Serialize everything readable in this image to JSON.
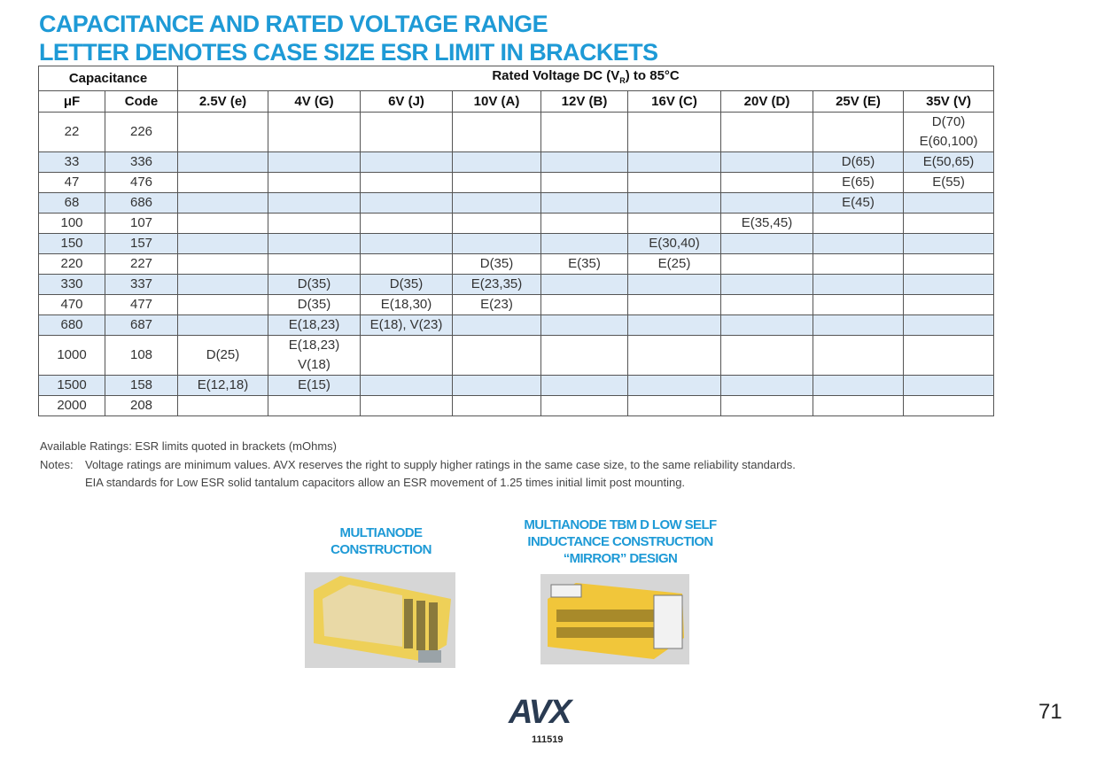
{
  "header": {
    "title_lines": [
      "CAPACITANCE AND RATED VOLTAGE RANGE",
      "LETTER DENOTES CASE SIZE ESR LIMIT IN BRACKETS"
    ]
  },
  "table": {
    "group_headers": {
      "capacitance": "Capacitance",
      "voltage": {
        "before": "Rated Voltage DC (V",
        "sub": "R",
        "after": ") to 85°C"
      }
    },
    "columns": [
      "μF",
      "Code",
      "2.5V (e)",
      "4V (G)",
      "6V (J)",
      "10V (A)",
      "12V (B)",
      "16V (C)",
      "20V (D)",
      "25V (E)",
      "35V (V)"
    ],
    "rows": [
      [
        "22",
        "226",
        null,
        null,
        null,
        null,
        null,
        null,
        null,
        null,
        [
          "D(70)",
          "E(60,100)"
        ]
      ],
      [
        "33",
        "336",
        null,
        null,
        null,
        null,
        null,
        null,
        null,
        [
          "D(65)"
        ],
        [
          "E(50,65)"
        ]
      ],
      [
        "47",
        "476",
        null,
        null,
        null,
        null,
        null,
        null,
        null,
        [
          "E(65)"
        ],
        [
          "E(55)"
        ]
      ],
      [
        "68",
        "686",
        null,
        null,
        null,
        null,
        null,
        null,
        null,
        [
          "E(45)"
        ],
        null
      ],
      [
        "100",
        "107",
        null,
        null,
        null,
        null,
        null,
        null,
        [
          "E(35,45)"
        ],
        null,
        null
      ],
      [
        "150",
        "157",
        null,
        null,
        null,
        null,
        null,
        [
          "E(30,40)"
        ],
        null,
        null,
        null
      ],
      [
        "220",
        "227",
        null,
        null,
        null,
        [
          "D(35)"
        ],
        [
          "E(35)"
        ],
        [
          "E(25)"
        ],
        null,
        null,
        null
      ],
      [
        "330",
        "337",
        null,
        [
          "D(35)"
        ],
        [
          "D(35)"
        ],
        [
          "E(23,35)"
        ],
        null,
        null,
        null,
        null,
        null
      ],
      [
        "470",
        "477",
        null,
        [
          "D(35)"
        ],
        [
          "E(18,30)"
        ],
        [
          "E(23)"
        ],
        null,
        null,
        null,
        null,
        null
      ],
      [
        "680",
        "687",
        null,
        [
          "E(18,23)"
        ],
        [
          "E(18), V(23)"
        ],
        null,
        null,
        null,
        null,
        null,
        null
      ],
      [
        "1000",
        "108",
        [
          "D(25)"
        ],
        [
          "E(18,23)",
          "V(18)"
        ],
        null,
        null,
        null,
        null,
        null,
        null,
        null
      ],
      [
        "1500",
        "158",
        [
          "E(12,18)"
        ],
        [
          "E(15)"
        ],
        null,
        null,
        null,
        null,
        null,
        null,
        null
      ],
      [
        "2000",
        "208",
        null,
        null,
        null,
        null,
        null,
        null,
        null,
        null,
        null
      ]
    ]
  },
  "notes": {
    "available": "Available Ratings: ESR limits quoted in brackets (mOhms)",
    "label": "Notes:",
    "lines": [
      "Voltage ratings are minimum values. AVX reserves the right to supply higher ratings in the same case size, to the same reliability standards.",
      "EIA standards for Low ESR solid tantalum capacitors allow an ESR movement of 1.25 times initial limit post mounting."
    ]
  },
  "figures": [
    {
      "caption": [
        "MULTIANODE",
        "CONSTRUCTION"
      ]
    },
    {
      "caption": [
        "MULTIANODE TBM D LOW SELF",
        "INDUCTANCE CONSTRUCTION",
        "“MIRROR” DESIGN"
      ]
    }
  ],
  "footer": {
    "logo": "AVX",
    "code": "111519",
    "page": "71"
  }
}
